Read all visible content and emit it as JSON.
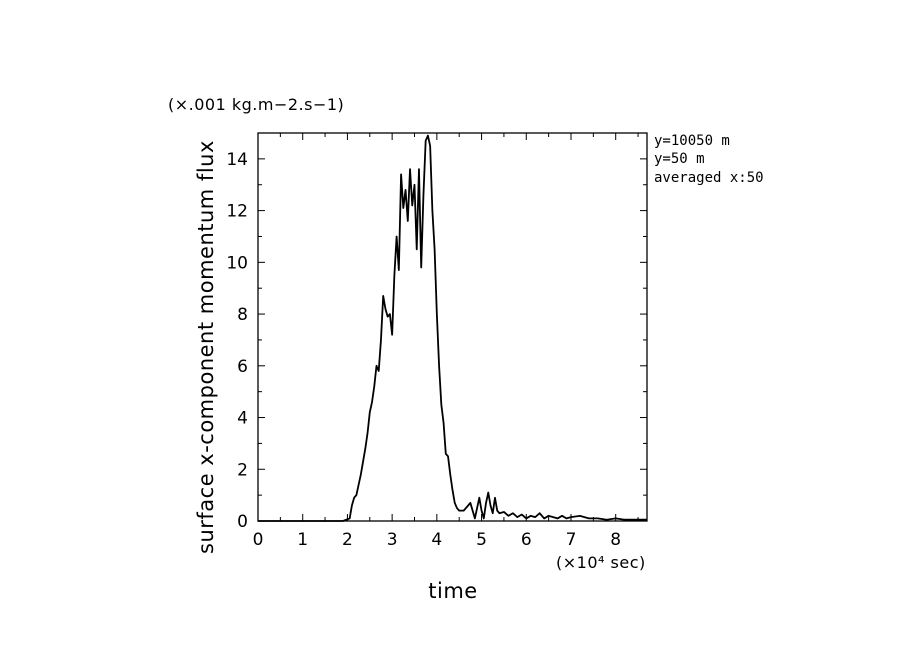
{
  "chart_data": {
    "type": "line",
    "xlabel": "time",
    "ylabel": "surface x-component momentum flux",
    "x_unit_label": "(×10⁴ sec)",
    "y_unit_label": "(×.001 kg.m−2.s−1)",
    "xlim": [
      0,
      8.7
    ],
    "ylim": [
      0,
      15
    ],
    "xticks": [
      0,
      1,
      2,
      3,
      4,
      5,
      6,
      7,
      8
    ],
    "xtick_labels": [
      "0",
      "1",
      "2",
      "3",
      "4",
      "5",
      "6",
      "7",
      "8"
    ],
    "yticks": [
      0,
      2,
      4,
      6,
      8,
      10,
      12,
      14
    ],
    "ytick_labels": [
      "0",
      "2",
      "4",
      "6",
      "8",
      "10",
      "12",
      "14"
    ],
    "annotations": [
      "y=10050  m",
      "y=50  m",
      "averaged   x:50"
    ],
    "series": [
      {
        "name": "momentum flux",
        "color": "#000000",
        "x": [
          0.0,
          1.9,
          2.05,
          2.1,
          2.15,
          2.2,
          2.3,
          2.4,
          2.45,
          2.5,
          2.55,
          2.6,
          2.65,
          2.7,
          2.75,
          2.8,
          2.85,
          2.9,
          2.95,
          3.0,
          3.05,
          3.1,
          3.15,
          3.2,
          3.25,
          3.3,
          3.35,
          3.4,
          3.45,
          3.5,
          3.55,
          3.6,
          3.65,
          3.7,
          3.75,
          3.8,
          3.85,
          3.9,
          3.95,
          4.0,
          4.05,
          4.1,
          4.15,
          4.2,
          4.25,
          4.3,
          4.35,
          4.4,
          4.45,
          4.5,
          4.6,
          4.7,
          4.75,
          4.8,
          4.85,
          4.9,
          4.95,
          5.0,
          5.05,
          5.1,
          5.15,
          5.2,
          5.25,
          5.3,
          5.35,
          5.4,
          5.5,
          5.6,
          5.7,
          5.8,
          5.9,
          6.0,
          6.1,
          6.2,
          6.3,
          6.4,
          6.5,
          6.6,
          6.7,
          6.8,
          6.9,
          7.0,
          7.2,
          7.4,
          7.6,
          7.8,
          8.0,
          8.2,
          8.4,
          8.6,
          8.7
        ],
        "y": [
          0.0,
          0.0,
          0.1,
          0.6,
          0.9,
          1.0,
          1.8,
          2.8,
          3.4,
          4.2,
          4.6,
          5.2,
          6.0,
          5.8,
          7.0,
          8.7,
          8.2,
          7.9,
          8.0,
          7.2,
          9.5,
          11.0,
          9.7,
          13.4,
          12.1,
          12.8,
          11.6,
          13.6,
          12.2,
          13.0,
          10.5,
          13.6,
          9.8,
          12.6,
          14.7,
          14.9,
          14.5,
          12.0,
          10.5,
          8.0,
          6.0,
          4.5,
          3.8,
          2.6,
          2.5,
          1.8,
          1.2,
          0.7,
          0.5,
          0.4,
          0.4,
          0.6,
          0.7,
          0.4,
          0.1,
          0.5,
          0.9,
          0.4,
          0.1,
          0.7,
          1.1,
          0.6,
          0.3,
          0.9,
          0.4,
          0.3,
          0.35,
          0.2,
          0.3,
          0.15,
          0.25,
          0.1,
          0.2,
          0.15,
          0.3,
          0.1,
          0.2,
          0.15,
          0.1,
          0.2,
          0.1,
          0.15,
          0.2,
          0.1,
          0.1,
          0.05,
          0.1,
          0.05,
          0.05,
          0.05,
          0.05
        ]
      }
    ]
  }
}
